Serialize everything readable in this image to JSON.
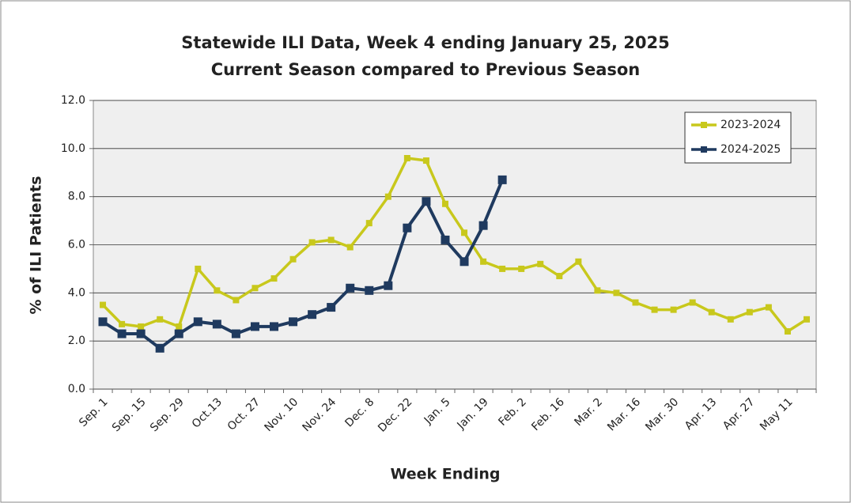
{
  "chart_data": {
    "type": "line",
    "title": "Statewide ILI Data, Week 4 ending January 25, 2025",
    "subtitle": "Current Season compared to Previous Season",
    "x_label": "Week Ending",
    "y_label": "% of ILI Patients",
    "categories": [
      "Sep. 1",
      null,
      "Sep. 15",
      null,
      "Sep. 29",
      null,
      "Oct.13",
      null,
      "Oct. 27",
      null,
      "Nov. 10",
      null,
      "Nov. 24",
      null,
      "Dec. 8",
      null,
      "Dec. 22",
      null,
      "Jan. 5",
      null,
      "Jan. 19",
      null,
      "Feb. 2",
      null,
      "Feb. 16",
      null,
      "Mar. 2",
      null,
      "Mar. 16",
      null,
      "Mar. 30",
      null,
      "Apr. 13",
      null,
      "Apr. 27",
      null,
      "May 11",
      null
    ],
    "series": [
      {
        "name": "2023-2024",
        "color": "#c8c81c",
        "values": [
          3.5,
          2.7,
          2.6,
          2.9,
          2.6,
          5.0,
          4.1,
          3.7,
          4.2,
          4.6,
          5.4,
          6.1,
          6.2,
          5.9,
          6.9,
          8.0,
          9.6,
          9.5,
          7.7,
          6.5,
          5.3,
          5.0,
          5.0,
          5.2,
          4.7,
          5.3,
          4.1,
          4.0,
          3.6,
          3.3,
          3.3,
          3.6,
          3.2,
          2.9,
          3.2,
          3.4,
          2.4,
          2.9
        ]
      },
      {
        "name": "2024-2025",
        "color": "#1f3a5f",
        "values": [
          2.8,
          2.3,
          2.3,
          1.7,
          2.3,
          2.8,
          2.7,
          2.3,
          2.6,
          2.6,
          2.8,
          3.1,
          3.4,
          4.2,
          4.1,
          4.3,
          6.7,
          7.8,
          6.2,
          5.3,
          6.8,
          8.7,
          null,
          null,
          null,
          null,
          null,
          null,
          null,
          null,
          null,
          null,
          null,
          null,
          null,
          null,
          null,
          null
        ]
      }
    ],
    "ylim": [
      0,
      12
    ],
    "yticks": [
      {
        "value": 0,
        "label": "0.0"
      },
      {
        "value": 2,
        "label": "2.0"
      },
      {
        "value": 4,
        "label": "4.0"
      },
      {
        "value": 6,
        "label": "6.0"
      },
      {
        "value": 8,
        "label": "8.0"
      },
      {
        "value": 10,
        "label": "10.0"
      },
      {
        "value": 12,
        "label": "12.0"
      }
    ],
    "grid": true,
    "legend": "top-right"
  }
}
